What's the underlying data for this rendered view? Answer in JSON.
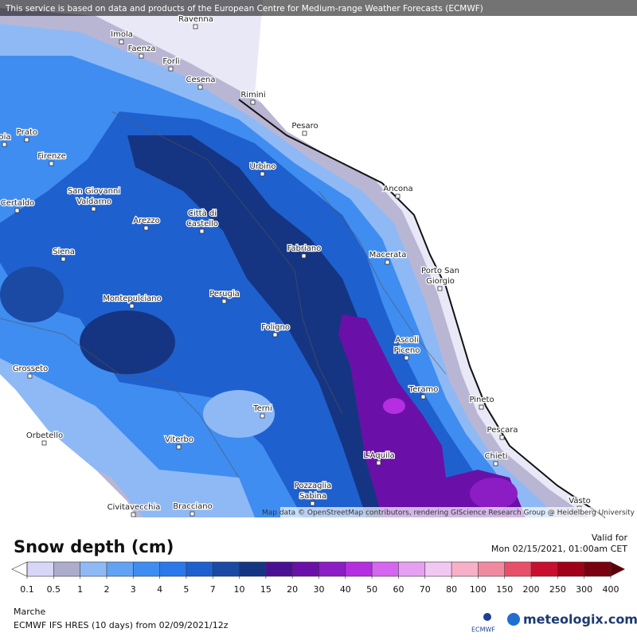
{
  "header": {
    "notice": "This service is based on data and products of the European Centre for Medium-range Weather Forecasts (ECMWF)"
  },
  "map": {
    "cities": [
      {
        "lines": [
          "Ravenna"
        ]
      },
      {
        "lines": [
          "Imola"
        ]
      },
      {
        "lines": [
          "Faenza"
        ]
      },
      {
        "lines": [
          "Forlì"
        ]
      },
      {
        "lines": [
          "Cesena"
        ]
      },
      {
        "lines": [
          "Rimini"
        ]
      },
      {
        "lines": [
          "Pesaro"
        ]
      },
      {
        "lines": [
          "Prato"
        ]
      },
      {
        "lines": [
          "oia"
        ]
      },
      {
        "lines": [
          "Firenze"
        ]
      },
      {
        "lines": [
          "Urbino"
        ]
      },
      {
        "lines": [
          "Ancona"
        ]
      },
      {
        "lines": [
          "San Giovanni",
          "Valdarno"
        ]
      },
      {
        "lines": [
          "Certaldo"
        ]
      },
      {
        "lines": [
          "Arezzo"
        ]
      },
      {
        "lines": [
          "Città di",
          "Castello"
        ]
      },
      {
        "lines": [
          "Siena"
        ]
      },
      {
        "lines": [
          "Fabriano"
        ]
      },
      {
        "lines": [
          "Macerata"
        ]
      },
      {
        "lines": [
          "Porto San",
          "Giorgio"
        ]
      },
      {
        "lines": [
          "Perugia"
        ]
      },
      {
        "lines": [
          "Montepulciano"
        ]
      },
      {
        "lines": [
          "Foligno"
        ]
      },
      {
        "lines": [
          "Ascoli",
          "Piceno"
        ]
      },
      {
        "lines": [
          "Grosseto"
        ]
      },
      {
        "lines": [
          "Teramo"
        ]
      },
      {
        "lines": [
          "Pineto"
        ]
      },
      {
        "lines": [
          "Terni"
        ]
      },
      {
        "lines": [
          "Pescara"
        ]
      },
      {
        "lines": [
          "Orbetello"
        ]
      },
      {
        "lines": [
          "Viterbo"
        ]
      },
      {
        "lines": [
          "L'Aquila"
        ]
      },
      {
        "lines": [
          "Chieti"
        ]
      },
      {
        "lines": [
          "Pozzaglia",
          "Sabina"
        ]
      },
      {
        "lines": [
          "Civitavecchia"
        ]
      },
      {
        "lines": [
          "Bracciano"
        ]
      },
      {
        "lines": [
          "Vasto"
        ]
      }
    ],
    "attribution": "Map data © OpenStreetMap contributors, rendering GIScience Research Group @ Heidelberg University"
  },
  "legend": {
    "title": "Snow depth (cm)",
    "valid_label": "Valid for",
    "valid_time": "Mon 02/15/2021, 01:00am CET",
    "ticks": [
      0.1,
      0.5,
      1,
      2,
      3,
      4,
      5,
      7,
      10,
      15,
      20,
      30,
      40,
      50,
      60,
      70,
      80,
      100,
      150,
      200,
      250,
      300,
      400
    ],
    "low_color": "#ffffff",
    "colors": [
      "#d8d6f6",
      "#aeaccb",
      "#8fb9f5",
      "#62a2f3",
      "#3f8df0",
      "#2b78eb",
      "#1f60cf",
      "#1a4aa3",
      "#153582",
      "#4a1093",
      "#6a10a8",
      "#8c1cc4",
      "#b52ee0",
      "#d466f0",
      "#e6a0f2",
      "#f0c8f2",
      "#f7b0c8",
      "#f08aa0",
      "#e8506a",
      "#c8102e",
      "#a00018",
      "#7a0010"
    ],
    "high_color": "#5c0008"
  },
  "footer": {
    "region": "Marche",
    "model": "ECMWF IFS HRES (10 days) from 02/09/2021/12z",
    "ecmwf": "ECMWF",
    "brand": "meteologix.com"
  }
}
